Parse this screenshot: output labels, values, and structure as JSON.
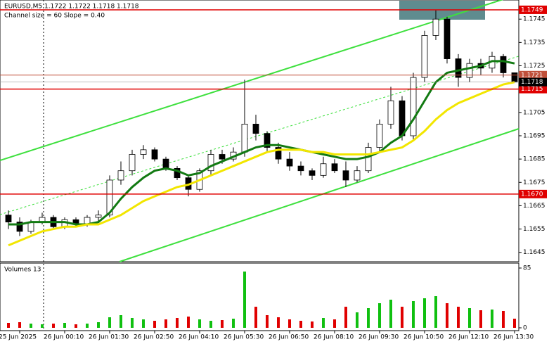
{
  "chart_data": {
    "type": "candlestick",
    "title": "EURUSD,M5  1.1722 1.1722 1.1718 1.1718",
    "subtitle": "Channel size = 60 Slope = 0.40",
    "categories": [
      null,
      "25 Jun 2025",
      null,
      null,
      null,
      "26 Jun 00:10",
      null,
      null,
      null,
      "26 Jun 01:30",
      null,
      null,
      null,
      "26 Jun 02:50",
      null,
      null,
      null,
      "26 Jun 04:10",
      null,
      null,
      null,
      "26 Jun 05:30",
      null,
      null,
      null,
      "26 Jun 06:50",
      null,
      null,
      null,
      "26 Jun 08:10",
      null,
      null,
      null,
      "26 Jun 09:30",
      null,
      null,
      null,
      "26 Jun 10:50",
      null,
      null,
      null,
      "26 Jun 12:10",
      null,
      null,
      null,
      "26 Jun 13:30"
    ],
    "open": [
      1.1661,
      1.1658,
      1.1654,
      1.1658,
      1.166,
      1.1656,
      1.1659,
      1.1657,
      1.166,
      1.1661,
      1.1676,
      1.168,
      1.1687,
      1.1689,
      1.1685,
      1.1681,
      1.1677,
      1.1672,
      1.168,
      1.1687,
      1.1685,
      1.1688,
      1.17,
      1.1696,
      1.169,
      1.1685,
      1.1682,
      1.168,
      1.1678,
      1.1683,
      1.168,
      1.1676,
      1.168,
      1.169,
      1.17,
      1.171,
      1.1695,
      1.172,
      1.1738,
      1.1745,
      1.1728,
      1.172,
      1.1726,
      1.1724,
      1.1729,
      1.1722
    ],
    "high": [
      1.1663,
      1.166,
      1.1659,
      1.1662,
      1.1661,
      1.166,
      1.166,
      1.1661,
      1.1663,
      1.1678,
      1.1684,
      1.1689,
      1.1691,
      1.169,
      1.1686,
      1.1682,
      1.1678,
      1.1681,
      1.1689,
      1.1689,
      1.169,
      1.1719,
      1.1704,
      1.1697,
      1.1692,
      1.1688,
      1.1684,
      1.1681,
      1.1686,
      1.1685,
      1.1684,
      1.1682,
      1.1692,
      1.1702,
      1.1716,
      1.1712,
      1.1722,
      1.174,
      1.1749,
      1.1746,
      1.173,
      1.1728,
      1.1728,
      1.1731,
      1.173,
      1.1722
    ],
    "low": [
      1.1655,
      1.1652,
      1.1653,
      1.1657,
      1.1655,
      1.1655,
      1.1656,
      1.1656,
      1.1658,
      1.166,
      1.1674,
      1.1678,
      1.1685,
      1.1684,
      1.168,
      1.1676,
      1.1669,
      1.1671,
      1.1678,
      1.1683,
      1.1684,
      1.1686,
      1.1693,
      1.1688,
      1.1683,
      1.168,
      1.1678,
      1.1676,
      1.1677,
      1.1679,
      1.1673,
      1.1675,
      1.1679,
      1.1688,
      1.1698,
      1.1693,
      1.1693,
      1.1718,
      1.1736,
      1.1726,
      1.1716,
      1.1718,
      1.1721,
      1.1722,
      1.172,
      1.1718
    ],
    "close": [
      1.1658,
      1.1654,
      1.1658,
      1.166,
      1.1656,
      1.1659,
      1.1657,
      1.166,
      1.1661,
      1.1676,
      1.168,
      1.1687,
      1.1689,
      1.1685,
      1.1681,
      1.1677,
      1.1672,
      1.168,
      1.1687,
      1.1685,
      1.1688,
      1.17,
      1.1696,
      1.169,
      1.1685,
      1.1682,
      1.168,
      1.1678,
      1.1683,
      1.168,
      1.1676,
      1.168,
      1.169,
      1.17,
      1.171,
      1.1695,
      1.172,
      1.1738,
      1.1745,
      1.1728,
      1.172,
      1.1726,
      1.1724,
      1.1729,
      1.1722,
      1.1718
    ],
    "series": [
      {
        "color": "#127a12",
        "values": [
          1.1657,
          1.1657,
          1.1658,
          1.1658,
          1.1658,
          1.1658,
          1.1657,
          1.1657,
          1.1658,
          1.1662,
          1.1668,
          1.1673,
          1.1677,
          1.168,
          1.1681,
          1.168,
          1.1678,
          1.1679,
          1.1682,
          1.1684,
          1.1686,
          1.1688,
          1.169,
          1.1691,
          1.1691,
          1.169,
          1.1689,
          1.1688,
          1.1687,
          1.1686,
          1.1685,
          1.1685,
          1.1686,
          1.1688,
          1.1692,
          1.1695,
          1.1702,
          1.171,
          1.1718,
          1.1722,
          1.1723,
          1.1724,
          1.1725,
          1.1727,
          1.1727,
          1.1726
        ]
      },
      {
        "color": "#f2e600",
        "values": [
          1.1648,
          1.165,
          1.1652,
          1.1654,
          1.1655,
          1.1656,
          1.1656,
          1.1657,
          1.1657,
          1.1659,
          1.1661,
          1.1664,
          1.1667,
          1.1669,
          1.1671,
          1.1673,
          1.1674,
          1.1676,
          1.1678,
          1.168,
          1.1682,
          1.1684,
          1.1686,
          1.1688,
          1.1689,
          1.1689,
          1.1689,
          1.1688,
          1.1688,
          1.1687,
          1.1687,
          1.1687,
          1.1687,
          1.1688,
          1.1689,
          1.169,
          1.1693,
          1.1697,
          1.1702,
          1.1706,
          1.1709,
          1.1711,
          1.1713,
          1.1715,
          1.1717,
          1.1718
        ]
      }
    ],
    "ylim": [
      1.1641,
      1.1752
    ],
    "yticks": [
      1.1745,
      1.1735,
      1.1725,
      1.1705,
      1.1695,
      1.1685,
      1.1675,
      1.1665,
      1.1655,
      1.1645
    ],
    "levels": [
      {
        "value": 1.1749,
        "color": "#e00000"
      },
      {
        "value": 1.1721,
        "color": "#c0503a"
      },
      {
        "value": 1.1715,
        "color": "#e00000"
      },
      {
        "value": {
          "value": 1.167,
          "label": "1.1670"
        },
        "color": "#e00000"
      }
    ],
    "current_price": 1.1718,
    "volume_label": "Volumes 13",
    "volume": [
      7,
      8,
      6,
      5,
      6,
      7,
      5,
      6,
      8,
      15,
      18,
      14,
      12,
      10,
      12,
      14,
      16,
      12,
      10,
      11,
      13,
      80,
      30,
      18,
      15,
      12,
      10,
      9,
      14,
      12,
      30,
      22,
      28,
      35,
      40,
      30,
      38,
      42,
      45,
      35,
      30,
      28,
      25,
      26,
      24,
      13
    ],
    "volume_ylim": [
      0,
      85
    ],
    "volume_yticks": [
      85,
      0
    ]
  }
}
